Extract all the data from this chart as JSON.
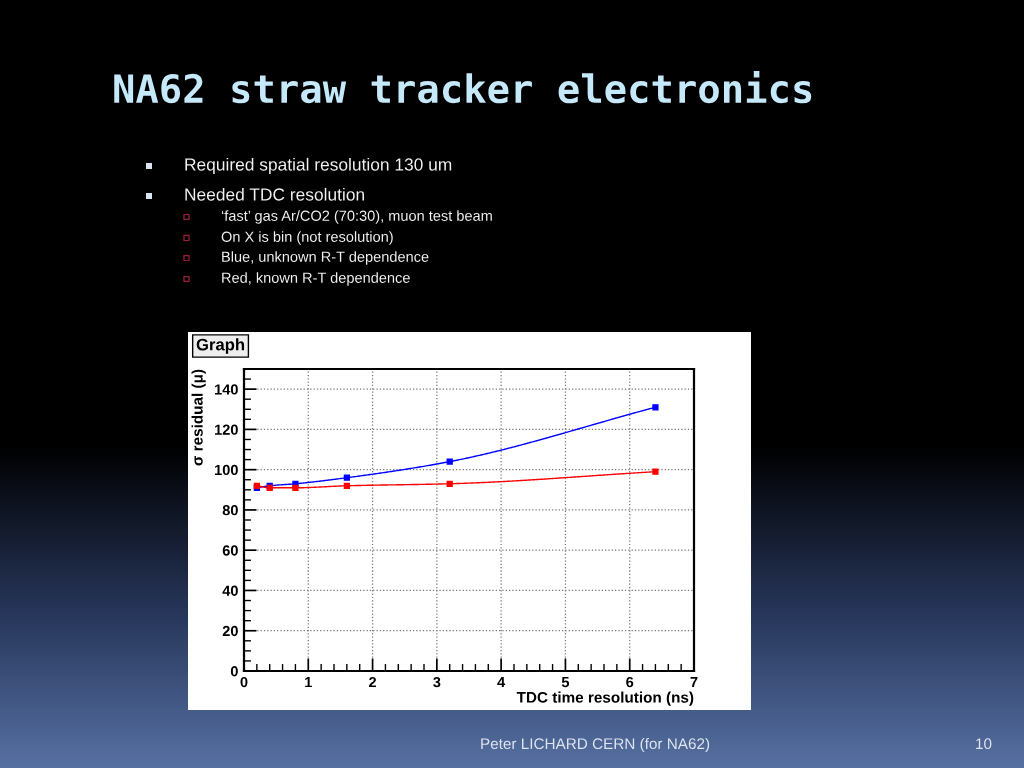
{
  "chart_data": {
    "type": "line",
    "title": "NA62 straw tracker electronics",
    "xlabel": "TDC time resolution (ns)",
    "ylabel": "σ residual (μ)",
    "x": [
      0.2,
      0.4,
      0.8,
      1.6,
      3.2,
      6.4
    ],
    "series": [
      {
        "color": "#0000ff",
        "values": [
          91,
          92,
          93,
          96,
          104,
          131
        ]
      },
      {
        "color": "#ff0000",
        "values": [
          92,
          91,
          91,
          92,
          93,
          99
        ]
      }
    ],
    "xlim": [
      0,
      7
    ],
    "ylim": [
      0,
      150
    ],
    "xticks": [
      0,
      1,
      2,
      3,
      4,
      5,
      6,
      7
    ],
    "yticks": [
      0,
      20,
      40,
      60,
      80,
      100,
      120,
      140
    ],
    "grid": true,
    "marker": "square",
    "line_style": "solid",
    "annotations": [
      "Required spatial resolution 130 um",
      "Needed TDC resolution",
      "‘fast’ gas Ar/CO2 (70:30), muon test beam",
      "On X is bin (not resolution)",
      "Blue, unknown R-T dependence",
      "Red, known R-T dependence",
      "Graph",
      "Peter LICHARD CERN (for NA62)",
      "10"
    ]
  }
}
